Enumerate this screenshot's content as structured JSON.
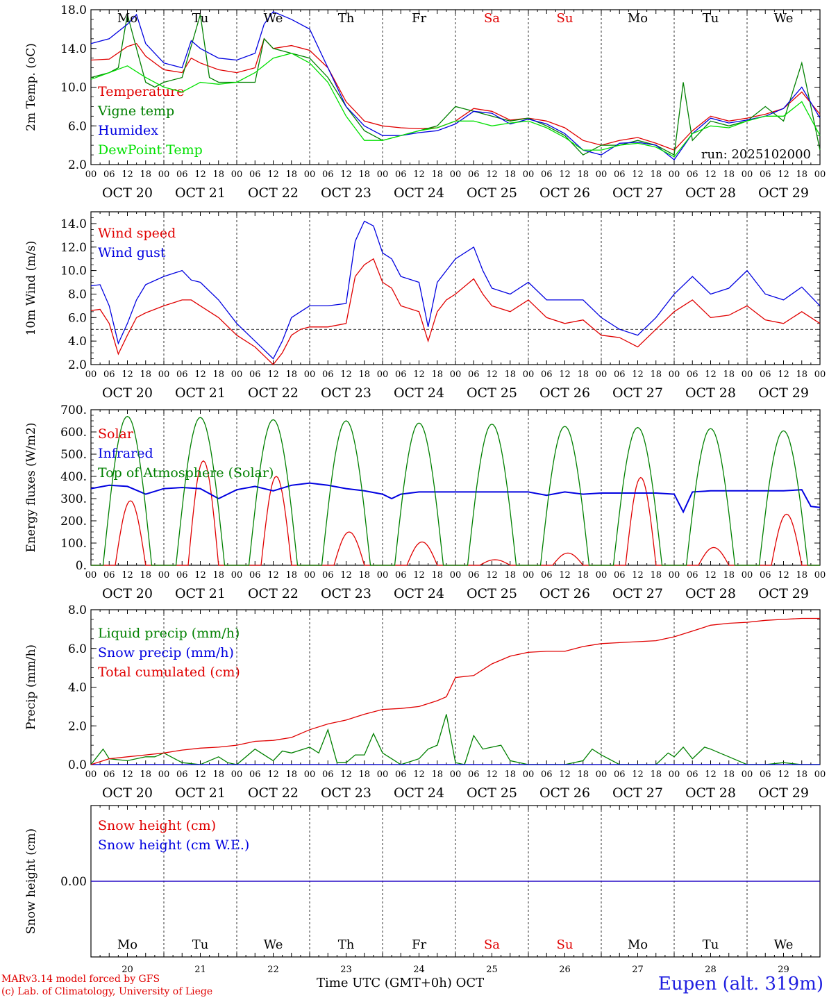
{
  "footer": {
    "model": "MARv3.14 model forced by GFS",
    "lab": "(c) Lab. of Climatology, University of Liege",
    "time_label": "Time UTC (GMT+0h)",
    "month": "OCT",
    "station": "Eupen (alt. 319m)"
  },
  "colors": {
    "red": "#e00000",
    "green": "#008000",
    "blue": "#0000e0",
    "lightgreen": "#00e000"
  },
  "axis": {
    "days": [
      "Mo",
      "Tu",
      "We",
      "Th",
      "Fr",
      "Sa",
      "Su",
      "Mo",
      "Tu",
      "We"
    ],
    "weekend_days": [
      5,
      6
    ],
    "dates": [
      "OCT 20",
      "OCT 21",
      "OCT 22",
      "OCT 23",
      "OCT 24",
      "OCT 25",
      "OCT 26",
      "OCT 27",
      "OCT 28",
      "OCT 29"
    ],
    "day_numbers": [
      "20",
      "21",
      "22",
      "23",
      "24",
      "25",
      "26",
      "27",
      "28",
      "29"
    ],
    "hour_ticks": [
      "00",
      "06",
      "12",
      "18"
    ],
    "x_range_hours": [
      0,
      240
    ]
  },
  "chart_data": [
    {
      "type": "line",
      "id": "temp",
      "ylabel": "2m Temp. (oC)",
      "ylim": [
        2,
        18
      ],
      "yticks": [
        "2.0",
        "6.0",
        "10.0",
        "14.0",
        "18.0"
      ],
      "ytick_values": [
        2,
        6,
        10,
        14,
        18
      ],
      "annotation": "run: 2025102000",
      "show_days": true,
      "series": [
        {
          "name": "Temperature",
          "color": "red",
          "x": [
            0,
            6,
            12,
            15,
            18,
            24,
            30,
            33,
            36,
            42,
            48,
            54,
            57,
            60,
            66,
            72,
            78,
            84,
            90,
            96,
            102,
            108,
            114,
            120,
            126,
            132,
            138,
            144,
            150,
            156,
            162,
            168,
            174,
            180,
            186,
            192,
            198,
            204,
            210,
            216,
            222,
            228,
            234,
            240
          ],
          "values": [
            12.8,
            12.9,
            14.2,
            14.5,
            13.2,
            11.8,
            11.5,
            13.0,
            12.5,
            11.8,
            11.5,
            12.0,
            15.0,
            14.0,
            14.3,
            13.8,
            12.0,
            8.5,
            6.5,
            6.0,
            5.8,
            5.7,
            5.8,
            6.5,
            7.8,
            7.5,
            6.6,
            6.8,
            6.5,
            5.8,
            4.5,
            4.0,
            4.5,
            4.8,
            4.2,
            3.5,
            5.5,
            7.0,
            6.5,
            6.8,
            7.2,
            7.8,
            9.5,
            7.2
          ]
        },
        {
          "name": "Vigne temp",
          "color": "green",
          "x": [
            0,
            6,
            9,
            12,
            15,
            18,
            21,
            24,
            30,
            36,
            39,
            42,
            48,
            54,
            57,
            60,
            66,
            72,
            78,
            84,
            90,
            96,
            102,
            108,
            114,
            120,
            126,
            132,
            138,
            144,
            150,
            156,
            162,
            168,
            174,
            180,
            186,
            192,
            195,
            198,
            204,
            210,
            216,
            222,
            228,
            234,
            237,
            240
          ],
          "values": [
            11.0,
            11.5,
            12.0,
            17.5,
            14.0,
            10.5,
            10.0,
            10.5,
            11.0,
            17.5,
            11.0,
            10.5,
            10.5,
            10.5,
            15.0,
            14.0,
            13.5,
            13.0,
            11.0,
            8.0,
            5.5,
            4.5,
            5.0,
            5.5,
            6.0,
            8.0,
            7.5,
            7.0,
            6.5,
            6.8,
            6.0,
            5.0,
            3.0,
            4.0,
            4.0,
            4.5,
            4.0,
            3.0,
            10.5,
            4.5,
            6.5,
            6.0,
            6.5,
            8.0,
            6.5,
            12.5,
            8.0,
            3.5
          ]
        },
        {
          "name": "Humidex",
          "color": "blue",
          "x": [
            0,
            6,
            12,
            15,
            18,
            24,
            30,
            33,
            36,
            42,
            48,
            54,
            57,
            60,
            66,
            72,
            78,
            84,
            90,
            96,
            102,
            108,
            114,
            120,
            126,
            132,
            138,
            144,
            150,
            156,
            162,
            168,
            174,
            180,
            186,
            192,
            198,
            204,
            210,
            216,
            222,
            228,
            234,
            240
          ],
          "values": [
            14.5,
            15.0,
            16.5,
            17.5,
            14.5,
            12.5,
            12.0,
            14.8,
            14.0,
            13.0,
            12.8,
            13.5,
            16.5,
            17.8,
            17.0,
            16.0,
            12.0,
            8.0,
            6.0,
            5.0,
            5.0,
            5.3,
            5.5,
            6.2,
            7.5,
            7.3,
            6.2,
            6.7,
            6.2,
            5.2,
            3.5,
            3.0,
            4.2,
            4.3,
            4.0,
            2.5,
            5.2,
            6.8,
            6.3,
            6.6,
            7.0,
            7.8,
            10.0,
            6.8
          ]
        },
        {
          "name": "DewPoint Temp",
          "color": "lightgreen",
          "x": [
            0,
            6,
            12,
            18,
            24,
            30,
            36,
            42,
            48,
            54,
            60,
            66,
            72,
            78,
            84,
            90,
            96,
            102,
            108,
            114,
            120,
            126,
            132,
            138,
            144,
            150,
            156,
            162,
            168,
            174,
            180,
            186,
            192,
            198,
            204,
            210,
            216,
            222,
            228,
            234,
            240
          ],
          "values": [
            10.8,
            11.5,
            12.2,
            11.0,
            10.0,
            9.5,
            10.5,
            10.3,
            10.5,
            11.5,
            13.0,
            13.5,
            12.5,
            10.5,
            7.0,
            4.5,
            4.5,
            5.0,
            5.5,
            5.8,
            6.5,
            6.5,
            6.0,
            6.3,
            6.5,
            5.8,
            4.8,
            3.5,
            3.5,
            4.0,
            4.2,
            3.8,
            2.8,
            5.2,
            6.0,
            5.8,
            6.5,
            7.0,
            7.0,
            8.5,
            5.0
          ]
        }
      ]
    },
    {
      "type": "line",
      "id": "wind",
      "ylabel": "10m Wind (m/s)",
      "ylim": [
        2,
        15
      ],
      "yticks": [
        "2.0",
        "4.0",
        "6.0",
        "8.0",
        "10.0",
        "12.0",
        "14.0"
      ],
      "ytick_values": [
        2,
        4,
        6,
        8,
        10,
        12,
        14
      ],
      "ref_line": 5,
      "show_days": false,
      "series": [
        {
          "name": "Wind speed",
          "color": "red",
          "x": [
            0,
            3,
            6,
            9,
            12,
            15,
            18,
            24,
            30,
            33,
            36,
            42,
            48,
            54,
            60,
            63,
            66,
            69,
            72,
            78,
            84,
            87,
            90,
            93,
            96,
            99,
            102,
            108,
            111,
            114,
            117,
            120,
            126,
            129,
            132,
            138,
            144,
            150,
            156,
            162,
            168,
            174,
            180,
            186,
            192,
            198,
            204,
            210,
            216,
            222,
            228,
            234,
            240
          ],
          "values": [
            6.6,
            6.7,
            5.5,
            2.9,
            4.5,
            6.0,
            6.4,
            7.0,
            7.5,
            7.5,
            7.0,
            6.0,
            4.5,
            3.5,
            2.0,
            3.0,
            4.5,
            5.0,
            5.2,
            5.2,
            5.5,
            9.5,
            10.5,
            11.0,
            9.0,
            8.5,
            7.0,
            6.5,
            4.0,
            6.5,
            7.5,
            8.0,
            9.3,
            8.0,
            7.0,
            6.5,
            7.5,
            6.0,
            5.5,
            5.8,
            4.5,
            4.3,
            3.5,
            5.0,
            6.5,
            7.5,
            6.0,
            6.2,
            7.0,
            5.8,
            5.5,
            6.5,
            5.5
          ]
        },
        {
          "name": "Wind gust",
          "color": "blue",
          "x": [
            0,
            3,
            6,
            9,
            12,
            15,
            18,
            24,
            30,
            33,
            36,
            42,
            48,
            54,
            60,
            63,
            66,
            69,
            72,
            78,
            84,
            87,
            90,
            93,
            96,
            99,
            102,
            108,
            111,
            114,
            117,
            120,
            126,
            129,
            132,
            138,
            144,
            150,
            156,
            162,
            168,
            174,
            180,
            186,
            192,
            198,
            204,
            210,
            216,
            222,
            228,
            234,
            240
          ],
          "values": [
            8.7,
            8.8,
            7.0,
            3.8,
            5.5,
            7.5,
            8.8,
            9.5,
            10.0,
            9.2,
            9.0,
            7.5,
            5.5,
            4.0,
            2.5,
            4.0,
            6.0,
            6.5,
            7.0,
            7.0,
            7.2,
            12.5,
            14.2,
            13.8,
            11.5,
            11.0,
            9.5,
            9.0,
            5.2,
            9.0,
            10.0,
            11.0,
            12.0,
            10.0,
            8.5,
            8.0,
            9.0,
            7.5,
            7.5,
            7.5,
            6.0,
            5.0,
            4.5,
            6.0,
            8.0,
            9.5,
            8.0,
            8.5,
            10.0,
            8.0,
            7.5,
            8.6,
            7.0
          ]
        }
      ]
    },
    {
      "type": "line",
      "id": "flux",
      "ylabel": "Energy fluxes (W/m2)",
      "ylim": [
        0,
        700
      ],
      "yticks": [
        "0.",
        "100.",
        "200.",
        "300.",
        "400.",
        "500.",
        "600.",
        "700."
      ],
      "ytick_values": [
        0,
        100,
        200,
        300,
        400,
        500,
        600,
        700
      ],
      "show_days": false,
      "peaks": {
        "toa": [
          670,
          665,
          655,
          650,
          640,
          635,
          625,
          620,
          615,
          605
        ],
        "solar": [
          290,
          470,
          400,
          150,
          105,
          25,
          55,
          395,
          80,
          230
        ]
      },
      "series": [
        {
          "name": "Solar",
          "color": "red"
        },
        {
          "name": "Infrared",
          "color": "blue",
          "x": [
            0,
            6,
            12,
            18,
            24,
            30,
            36,
            42,
            48,
            54,
            60,
            66,
            72,
            78,
            84,
            90,
            96,
            99,
            102,
            108,
            120,
            132,
            144,
            150,
            156,
            162,
            168,
            180,
            186,
            192,
            195,
            198,
            204,
            216,
            228,
            234,
            237,
            240
          ],
          "values": [
            345,
            360,
            355,
            320,
            345,
            350,
            345,
            300,
            340,
            355,
            335,
            360,
            370,
            360,
            345,
            335,
            320,
            300,
            320,
            330,
            330,
            330,
            330,
            315,
            330,
            320,
            325,
            325,
            325,
            320,
            240,
            330,
            335,
            335,
            335,
            340,
            265,
            260
          ]
        },
        {
          "name": "Top of Atmosphere (Solar)",
          "color": "green"
        }
      ]
    },
    {
      "type": "line",
      "id": "precip",
      "ylabel": "Precip (mm/h)",
      "ylim": [
        0,
        8
      ],
      "yticks": [
        "0.0",
        "2.0",
        "4.0",
        "6.0",
        "8.0"
      ],
      "ytick_values": [
        0,
        2,
        4,
        6,
        8
      ],
      "show_days": false,
      "series": [
        {
          "name": "Liquid precip (mm/h)",
          "color": "green",
          "x": [
            0,
            3,
            4,
            6,
            12,
            18,
            21,
            24,
            30,
            36,
            42,
            45,
            48,
            54,
            60,
            63,
            66,
            72,
            75,
            78,
            81,
            84,
            87,
            90,
            93,
            96,
            99,
            102,
            108,
            111,
            114,
            117,
            120,
            123,
            126,
            129,
            132,
            135,
            138,
            144,
            150,
            156,
            162,
            165,
            168,
            174,
            180,
            186,
            190,
            192,
            195,
            198,
            202,
            204,
            207,
            210,
            216,
            222,
            228,
            234,
            240
          ],
          "values": [
            0,
            0.6,
            0.8,
            0.3,
            0.2,
            0.4,
            0.4,
            0.6,
            0.1,
            0,
            0.4,
            0.1,
            0,
            0.8,
            0.2,
            0.7,
            0.6,
            0.9,
            0.6,
            1.8,
            0.1,
            0.1,
            0.5,
            0.5,
            1.6,
            0.6,
            0.3,
            0,
            0.3,
            0.8,
            1.0,
            2.6,
            0.1,
            0,
            1.5,
            0.8,
            0.9,
            1.0,
            0.2,
            0,
            0,
            0,
            0.2,
            0.8,
            0.5,
            0,
            0,
            0,
            0.6,
            0.4,
            0.9,
            0.3,
            0.9,
            0.8,
            0.6,
            0.4,
            0,
            0,
            0.1,
            0,
            0
          ]
        },
        {
          "name": "Snow precip (mm/h)",
          "color": "blue",
          "x": [
            0,
            240
          ],
          "values": [
            0,
            0
          ]
        },
        {
          "name": "Total cumulated (cm)",
          "color": "red",
          "x": [
            0,
            6,
            12,
            18,
            24,
            30,
            36,
            42,
            48,
            54,
            60,
            66,
            72,
            78,
            84,
            90,
            96,
            102,
            108,
            114,
            117,
            120,
            126,
            132,
            138,
            144,
            150,
            156,
            162,
            168,
            174,
            180,
            186,
            192,
            198,
            204,
            210,
            216,
            222,
            228,
            234,
            240
          ],
          "values": [
            0,
            0.3,
            0.4,
            0.5,
            0.6,
            0.75,
            0.85,
            0.9,
            1.0,
            1.2,
            1.25,
            1.4,
            1.8,
            2.1,
            2.3,
            2.6,
            2.85,
            2.9,
            3.0,
            3.3,
            3.5,
            4.5,
            4.6,
            5.2,
            5.6,
            5.8,
            5.85,
            5.85,
            6.1,
            6.25,
            6.3,
            6.35,
            6.4,
            6.6,
            6.9,
            7.2,
            7.3,
            7.35,
            7.45,
            7.5,
            7.55,
            7.55
          ]
        }
      ]
    },
    {
      "type": "line",
      "id": "snow",
      "ylabel": "Snow height (cm)",
      "ylim": [
        -1,
        1
      ],
      "yticks": [
        "0.00"
      ],
      "ytick_values": [
        0
      ],
      "show_days": true,
      "series": [
        {
          "name": "Snow height (cm)",
          "color": "red",
          "x": [
            0,
            240
          ],
          "values": [
            0,
            0
          ]
        },
        {
          "name": "Snow height (cm W.E.)",
          "color": "blue",
          "x": [
            0,
            240
          ],
          "values": [
            0,
            0
          ]
        }
      ]
    }
  ]
}
